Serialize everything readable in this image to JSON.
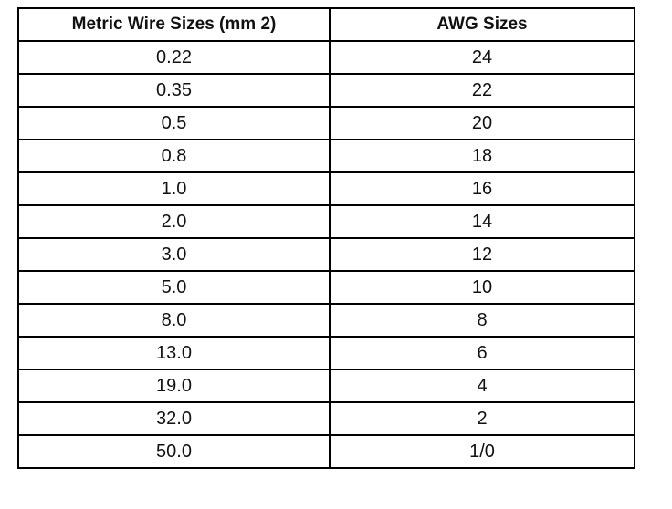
{
  "table": {
    "header": [
      "Metric Wire Sizes (mm 2)",
      "AWG Sizes"
    ],
    "rows": [
      [
        "0.22",
        "24"
      ],
      [
        "0.35",
        "22"
      ],
      [
        "0.5",
        "20"
      ],
      [
        "0.8",
        "18"
      ],
      [
        "1.0",
        "16"
      ],
      [
        "2.0",
        "14"
      ],
      [
        "3.0",
        "12"
      ],
      [
        "5.0",
        "10"
      ],
      [
        "8.0",
        "8"
      ],
      [
        "13.0",
        "6"
      ],
      [
        "19.0",
        "4"
      ],
      [
        "32.0",
        "2"
      ],
      [
        "50.0",
        "1/0"
      ]
    ]
  }
}
